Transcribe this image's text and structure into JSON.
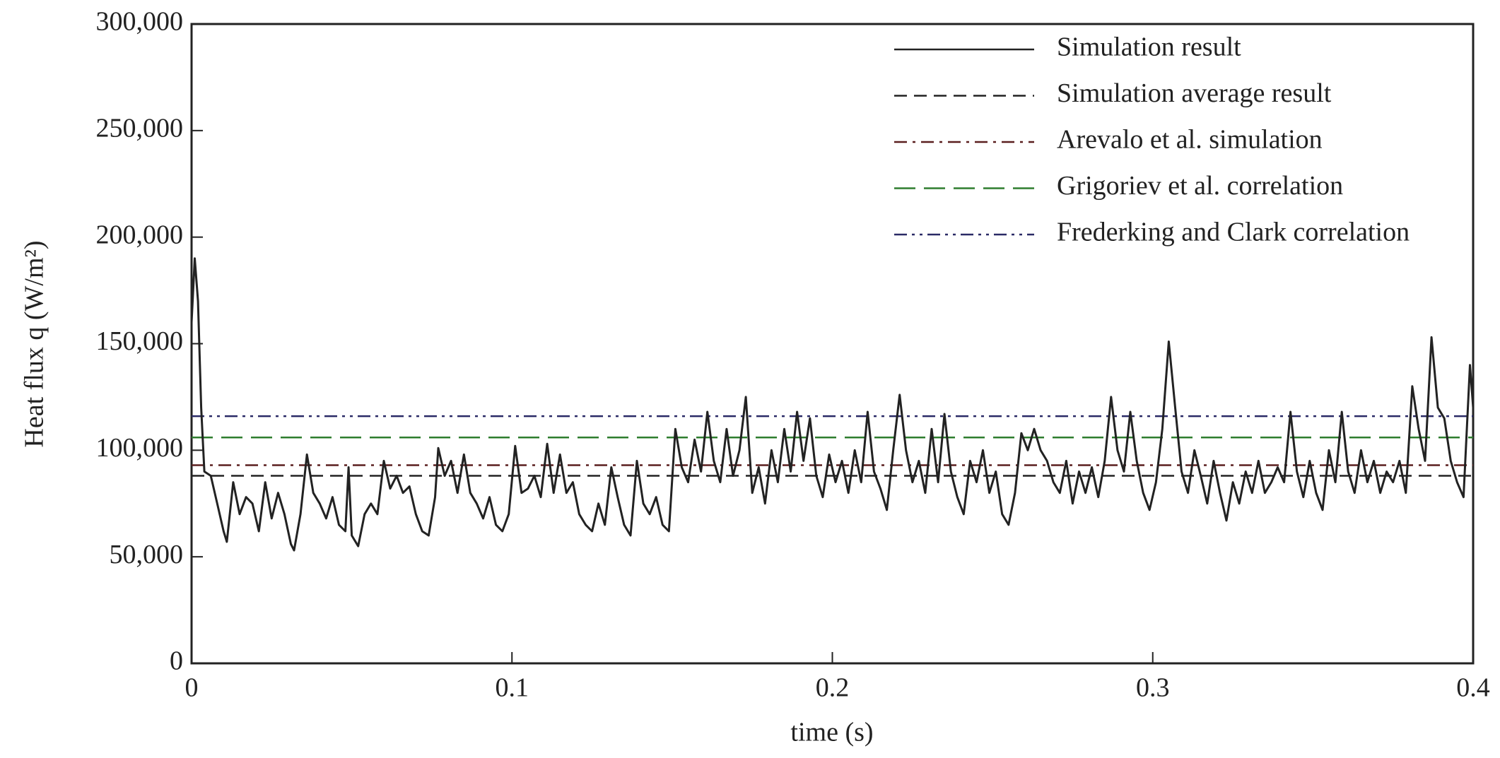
{
  "chart_data": {
    "type": "line",
    "xlabel": "time (s)",
    "ylabel": "Heat flux q (W/m²)",
    "xlim": [
      0,
      0.4
    ],
    "xticks": [
      0,
      0.1,
      0.2,
      0.3,
      0.4
    ],
    "ylim": [
      0,
      300000
    ],
    "yticks": [
      0,
      {
        "value": 50000,
        "label": "50,000"
      },
      {
        "value": 100000,
        "label": "100,000"
      },
      {
        "value": 150000,
        "label": "150,000"
      },
      {
        "value": 200000,
        "label": "200,000"
      },
      {
        "value": 250000,
        "label": "250,000"
      },
      {
        "value": 300000,
        "label": "300,000"
      }
    ],
    "legend": "upper right",
    "x": [
      0,
      0.001,
      0.002,
      0.003,
      0.004,
      0.006,
      0.008,
      0.01,
      0.011,
      0.013,
      0.015,
      0.017,
      0.019,
      0.021,
      0.023,
      0.025,
      0.027,
      0.029,
      0.031,
      0.032,
      0.034,
      0.036,
      0.038,
      0.04,
      0.042,
      0.044,
      0.046,
      0.048,
      0.049,
      0.05,
      0.052,
      0.054,
      0.056,
      0.058,
      0.06,
      0.062,
      0.064,
      0.066,
      0.068,
      0.07,
      0.072,
      0.074,
      0.076,
      0.077,
      0.079,
      0.081,
      0.083,
      0.085,
      0.087,
      0.089,
      0.091,
      0.093,
      0.095,
      0.097,
      0.099,
      0.101,
      0.103,
      0.105,
      0.107,
      0.109,
      0.111,
      0.113,
      0.115,
      0.117,
      0.119,
      0.121,
      0.123,
      0.125,
      0.127,
      0.129,
      0.131,
      0.133,
      0.135,
      0.137,
      0.139,
      0.141,
      0.143,
      0.145,
      0.147,
      0.149,
      0.151,
      0.153,
      0.155,
      0.157,
      0.159,
      0.161,
      0.163,
      0.165,
      0.167,
      0.169,
      0.171,
      0.173,
      0.175,
      0.177,
      0.179,
      0.181,
      0.183,
      0.185,
      0.187,
      0.189,
      0.191,
      0.193,
      0.195,
      0.197,
      0.199,
      0.201,
      0.203,
      0.205,
      0.207,
      0.209,
      0.211,
      0.213,
      0.215,
      0.217,
      0.219,
      0.221,
      0.223,
      0.225,
      0.227,
      0.229,
      0.231,
      0.233,
      0.235,
      0.237,
      0.239,
      0.241,
      0.243,
      0.245,
      0.247,
      0.249,
      0.251,
      0.253,
      0.255,
      0.257,
      0.259,
      0.261,
      0.263,
      0.265,
      0.267,
      0.269,
      0.271,
      0.273,
      0.275,
      0.277,
      0.279,
      0.281,
      0.283,
      0.285,
      0.287,
      0.289,
      0.291,
      0.293,
      0.295,
      0.297,
      0.299,
      0.301,
      0.303,
      0.305,
      0.307,
      0.309,
      0.311,
      0.313,
      0.315,
      0.317,
      0.319,
      0.321,
      0.323,
      0.325,
      0.327,
      0.329,
      0.331,
      0.333,
      0.335,
      0.337,
      0.339,
      0.341,
      0.343,
      0.345,
      0.347,
      0.349,
      0.351,
      0.353,
      0.355,
      0.357,
      0.359,
      0.361,
      0.363,
      0.365,
      0.367,
      0.369,
      0.371,
      0.373,
      0.375,
      0.377,
      0.379,
      0.381,
      0.383,
      0.385,
      0.387,
      0.389,
      0.391,
      0.393,
      0.395,
      0.397,
      0.399,
      0.4
    ],
    "series": [
      {
        "name": "Simulation result",
        "color": "#222222",
        "dash": "solid",
        "values": [
          160000,
          190000,
          170000,
          120000,
          90000,
          88000,
          75000,
          62000,
          57000,
          85000,
          70000,
          78000,
          75000,
          62000,
          85000,
          68000,
          80000,
          70000,
          56000,
          53000,
          70000,
          98000,
          80000,
          75000,
          68000,
          78000,
          65000,
          62000,
          92000,
          60000,
          55000,
          70000,
          75000,
          70000,
          95000,
          82000,
          88000,
          80000,
          83000,
          70000,
          62000,
          60000,
          78000,
          101000,
          88000,
          95000,
          80000,
          98000,
          80000,
          75000,
          68000,
          78000,
          65000,
          62000,
          70000,
          102000,
          80000,
          82000,
          88000,
          78000,
          103000,
          80000,
          98000,
          80000,
          85000,
          70000,
          65000,
          62000,
          75000,
          65000,
          92000,
          78000,
          65000,
          60000,
          95000,
          75000,
          70000,
          78000,
          65000,
          62000,
          110000,
          92000,
          85000,
          105000,
          90000,
          118000,
          95000,
          85000,
          110000,
          88000,
          100000,
          125000,
          80000,
          92000,
          75000,
          100000,
          85000,
          110000,
          90000,
          118000,
          95000,
          115000,
          88000,
          78000,
          98000,
          85000,
          95000,
          80000,
          100000,
          85000,
          118000,
          90000,
          82000,
          72000,
          100000,
          126000,
          100000,
          85000,
          95000,
          80000,
          110000,
          85000,
          117000,
          90000,
          78000,
          70000,
          95000,
          85000,
          100000,
          80000,
          90000,
          70000,
          65000,
          80000,
          108000,
          100000,
          110000,
          100000,
          95000,
          85000,
          80000,
          95000,
          75000,
          90000,
          80000,
          92000,
          78000,
          95000,
          125000,
          100000,
          90000,
          118000,
          95000,
          80000,
          72000,
          85000,
          110000,
          151000,
          120000,
          90000,
          80000,
          100000,
          88000,
          75000,
          95000,
          80000,
          67000,
          85000,
          75000,
          90000,
          80000,
          95000,
          80000,
          85000,
          92000,
          85000,
          118000,
          90000,
          78000,
          95000,
          80000,
          72000,
          100000,
          85000,
          118000,
          90000,
          80000,
          100000,
          85000,
          95000,
          80000,
          90000,
          85000,
          95000,
          80000,
          130000,
          110000,
          95000,
          153000,
          120000,
          115000,
          95000,
          85000,
          78000,
          140000,
          120000
        ]
      }
    ],
    "hlines": [
      {
        "name": "Simulation average result",
        "value": 88000,
        "color": "#222222",
        "dash": "dashed"
      },
      {
        "name": "Arevalo et al. simulation",
        "value": 93000,
        "color": "#5a1f1f",
        "dash": "dashdot"
      },
      {
        "name": "Grigoriev et al. correlation",
        "value": 106000,
        "color": "#2e7d2e",
        "dash": "longdash"
      },
      {
        "name": "Frederking and Clark correlation",
        "value": 116000,
        "color": "#2a2a66",
        "dash": "dashdotdot"
      }
    ]
  }
}
